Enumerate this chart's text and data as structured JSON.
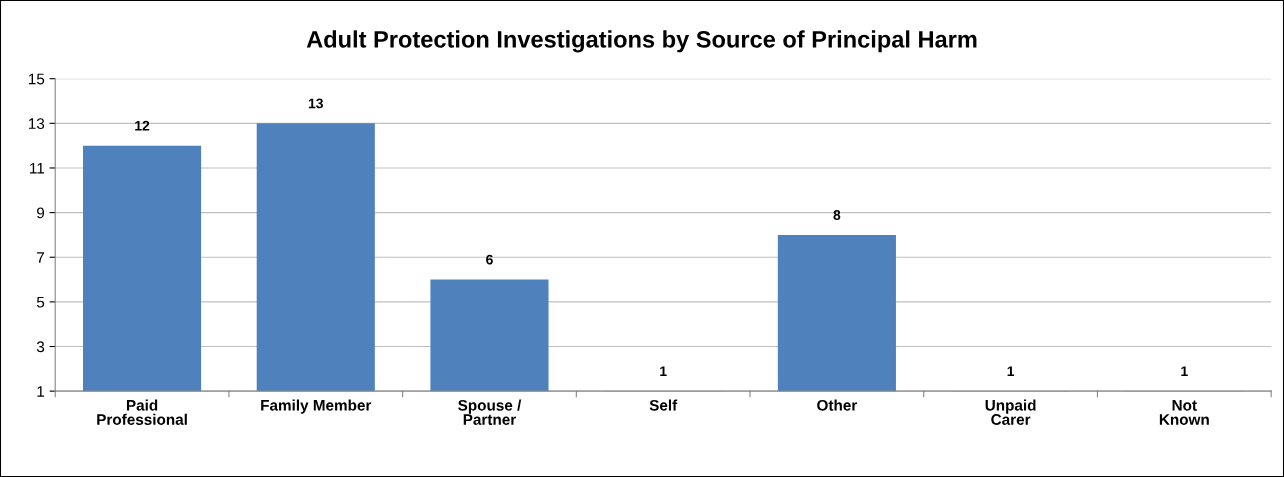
{
  "chart_data": {
    "type": "bar",
    "title": "Adult Protection Investigations by Source of Principal Harm",
    "categories": [
      "Paid\nProfessional",
      "Family Member",
      "Spouse /\nPartner",
      "Self",
      "Other",
      "Unpaid\nCarer",
      "Not\nKnown"
    ],
    "values": [
      12,
      13,
      6,
      1,
      8,
      1,
      1
    ],
    "color": "#4f81bd",
    "ylim": [
      1,
      15
    ],
    "yticks": [
      1,
      3,
      5,
      7,
      9,
      11,
      13,
      15
    ],
    "grid": "y",
    "data_labels": true,
    "legend": false
  }
}
